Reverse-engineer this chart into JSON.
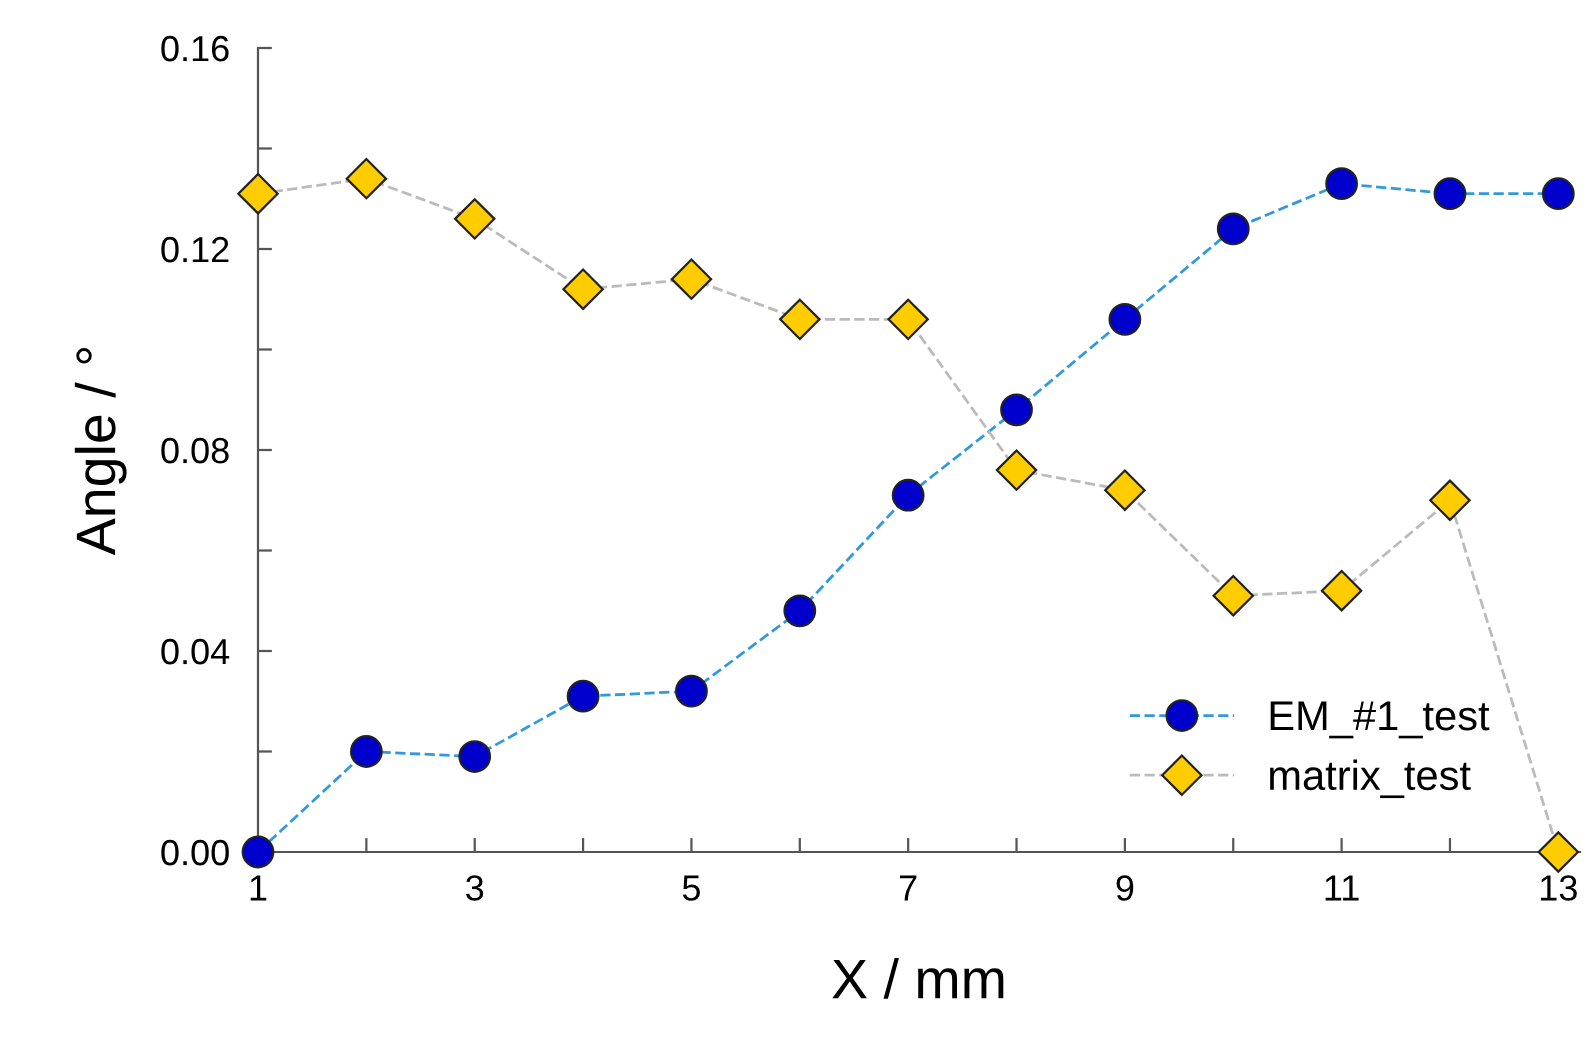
{
  "chart_data": {
    "type": "line",
    "xlabel": "X / mm",
    "ylabel": "Angle / °",
    "x": [
      1,
      2,
      3,
      4,
      5,
      6,
      7,
      8,
      9,
      10,
      11,
      12,
      13
    ],
    "series": [
      {
        "name": "EM_#1_test",
        "color": "#3399dd",
        "colors": [
          "#0000cc",
          "#0000cc",
          "#0000cc",
          "#0000cc",
          "#0000cc",
          "#0000cc",
          "#0000cc",
          "#0000cc",
          "#0000cc",
          "#0000cc",
          "#0000cc",
          "#0000cc",
          "#0000cc"
        ],
        "marker": "circle",
        "values": [
          0.0,
          0.02,
          0.019,
          0.031,
          0.032,
          0.048,
          0.071,
          0.088,
          0.106,
          0.124,
          0.133,
          0.131,
          0.131
        ]
      },
      {
        "name": "matrix_test",
        "color": "#bbbbbb",
        "colors": [
          "#ffcc00",
          "#ffcc00",
          "#ffcc00",
          "#ffcc00",
          "#ffcc00",
          "#ffcc00",
          "#ffcc00",
          "#ffcc00",
          "#ffcc00",
          "#ffcc00",
          "#ffcc00",
          "#ffcc00",
          "#ffcc00"
        ],
        "marker": "diamond",
        "values": [
          0.131,
          0.134,
          0.126,
          0.112,
          0.114,
          0.106,
          0.106,
          0.076,
          0.072,
          0.051,
          0.052,
          0.07,
          0.0
        ]
      }
    ],
    "xlim": [
      1,
      13.2
    ],
    "ylim": [
      0,
      0.16
    ],
    "xticks": [
      1,
      {
        "value": 2,
        "label": null
      },
      3,
      {
        "value": 4,
        "label": null
      },
      5,
      {
        "value": 6,
        "label": null
      },
      7,
      {
        "value": 8,
        "label": null
      },
      9,
      {
        "value": 10,
        "label": null
      },
      11,
      {
        "value": 12,
        "label": null
      },
      13
    ],
    "yticks": [
      {
        "value": 0,
        "label": "0.00"
      },
      {
        "value": 0.02,
        "label": null
      },
      {
        "value": 0.04,
        "label": "0.04"
      },
      {
        "value": 0.06,
        "label": null
      },
      {
        "value": 0.08,
        "label": "0.08"
      },
      {
        "value": 0.1,
        "label": null
      },
      {
        "value": 0.12,
        "label": "0.12"
      },
      {
        "value": 0.14,
        "label": null
      },
      {
        "value": 0.16,
        "label": "0.16"
      }
    ],
    "line_style": "dashed",
    "grid": false,
    "legend": "bottom right"
  }
}
